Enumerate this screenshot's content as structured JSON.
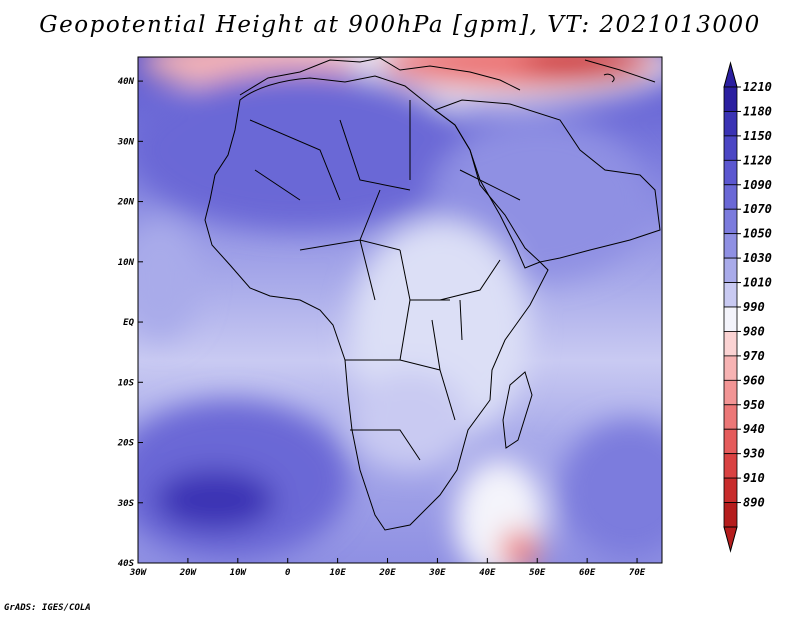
{
  "title": "Geopotential Height at 900hPa [gpm], VT: 2021013000",
  "credit": "GrADS: IGES/COLA",
  "map": {
    "lat_labels": [
      "40N",
      "30N",
      "20N",
      "10N",
      "EQ",
      "10S",
      "20S",
      "30S",
      "40S"
    ],
    "lon_labels": [
      "30W",
      "20W",
      "10W",
      "0",
      "10E",
      "20E",
      "30E",
      "40E",
      "50E",
      "60E",
      "70E"
    ],
    "lat_values": [
      40,
      30,
      20,
      10,
      0,
      -10,
      -20,
      -30,
      -40
    ],
    "lon_values": [
      -30,
      -20,
      -10,
      0,
      10,
      20,
      30,
      40,
      50,
      60,
      70
    ],
    "lat_range": [
      -40,
      44
    ],
    "lon_range": [
      -30,
      75
    ]
  },
  "colorbar": {
    "labels": [
      "1210",
      "1180",
      "1150",
      "1120",
      "1090",
      "1070",
      "1050",
      "1030",
      "1010",
      "990",
      "980",
      "970",
      "960",
      "950",
      "940",
      "930",
      "910",
      "890"
    ],
    "colors": [
      "#2b1fa0",
      "#3a33b4",
      "#4b46c4",
      "#5b57d0",
      "#6a68d6",
      "#7b7bdd",
      "#8f90e3",
      "#a9abea",
      "#c9caf2",
      "#f4f4fb",
      "#fbd3d3",
      "#f7b3b3",
      "#f29595",
      "#ec7777",
      "#e55c5c",
      "#d94242",
      "#c82c2c",
      "#b51d1d"
    ]
  }
}
